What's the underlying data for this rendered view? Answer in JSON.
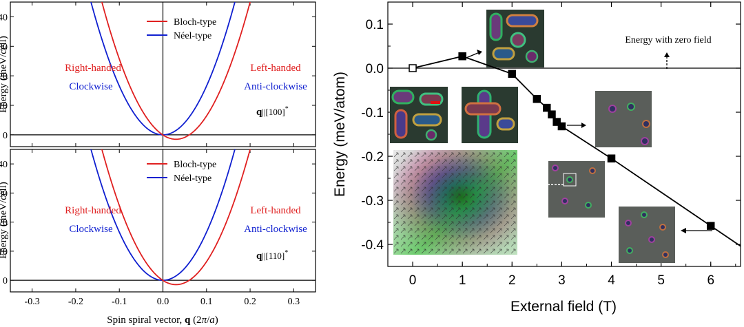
{
  "chart_data": [
    {
      "type": "line",
      "panel": "top-left",
      "ylabel": "Energy (meV/cell)",
      "xlim": [
        -0.35,
        0.35
      ],
      "ylim": [
        -4,
        45
      ],
      "yticks": [
        0,
        10,
        20,
        30,
        40
      ],
      "series": [
        {
          "name": "Bloch-type",
          "color": "#e02020",
          "curve": "parabola",
          "vertex_q": 0.03,
          "min_energy": -1.5,
          "energy_at_q_0.2": 45
        },
        {
          "name": "Néel-type",
          "color": "#1020d0",
          "curve": "parabola",
          "vertex_q": 0.0,
          "min_energy": 0,
          "energy_at_q_0.165": 45
        }
      ],
      "annotations": {
        "right_handed": "Right-handed",
        "clockwise": "Clockwise",
        "left_handed": "Left-handed",
        "anti_clockwise": "Anti-clockwise",
        "direction_bold": "q",
        "direction_rest": "||[100]",
        "direction_sup": "*"
      }
    },
    {
      "type": "line",
      "panel": "bottom-left",
      "ylabel": "Energy (meV/cell)",
      "xlabel": "Spin spiral vector, q (2π/a)",
      "xlim": [
        -0.35,
        0.35
      ],
      "ylim": [
        -4,
        45
      ],
      "xticks": [
        "-0.3",
        "-0.2",
        "-0.1",
        "0.0",
        "0.1",
        "0.2",
        "0.3"
      ],
      "yticks": [
        0,
        10,
        20,
        30,
        40
      ],
      "series": [
        {
          "name": "Bloch-type",
          "color": "#e02020",
          "curve": "parabola",
          "vertex_q": 0.03,
          "min_energy": -1.5,
          "energy_at_q_0.2": 45
        },
        {
          "name": "Néel-type",
          "color": "#1020d0",
          "curve": "parabola",
          "vertex_q": 0.0,
          "min_energy": 0,
          "energy_at_q_0.165": 45
        }
      ],
      "annotations": {
        "right_handed": "Right-handed",
        "clockwise": "Clockwise",
        "left_handed": "Left-handed",
        "anti_clockwise": "Anti-clockwise",
        "direction_bold": "q",
        "direction_rest": "||[110]",
        "direction_sup": "*"
      }
    },
    {
      "type": "line",
      "panel": "right",
      "xlabel": "External field (T)",
      "ylabel": "Energy (meV/atom)",
      "xlim": [
        -0.5,
        6.6
      ],
      "ylim": [
        -0.45,
        0.15
      ],
      "xticks": [
        0,
        1,
        2,
        3,
        4,
        5,
        6
      ],
      "yticks": [
        "0.1",
        "0.0",
        "-0.1",
        "-0.2",
        "-0.3",
        "-0.4"
      ],
      "series": [
        {
          "name": "Energy",
          "x": [
            0,
            1,
            2,
            2.5,
            2.7,
            2.8,
            2.9,
            3,
            4,
            6
          ],
          "y": [
            0.0,
            0.027,
            -0.013,
            -0.07,
            -0.09,
            -0.105,
            -0.122,
            -0.132,
            -0.205,
            -0.358
          ]
        }
      ],
      "reference_line": {
        "y": 0.0,
        "label": "Energy with zero field"
      }
    }
  ]
}
